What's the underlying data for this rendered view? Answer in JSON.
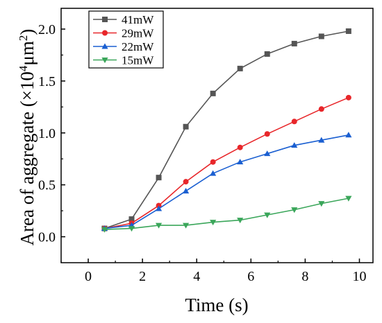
{
  "chart_data": {
    "type": "line",
    "title": "",
    "xlabel": "Time (s)",
    "ylabel_main": "Area of aggregate (×10",
    "ylabel_exp": "4",
    "ylabel_unit": "μm",
    "ylabel_unit_exp": "2",
    "ylabel_close": ")",
    "xlim": [
      -1,
      10.5
    ],
    "ylim": [
      -0.25,
      2.2
    ],
    "x_ticks": [
      0,
      2,
      4,
      6,
      8,
      10
    ],
    "x_tick_labels": [
      "0",
      "2",
      "4",
      "6",
      "8",
      "10"
    ],
    "y_ticks": [
      0.0,
      0.5,
      1.0,
      1.5,
      2.0
    ],
    "y_tick_labels": [
      "0.0",
      "0.5",
      "1.0",
      "1.5",
      "2.0"
    ],
    "legend_position": "top-left",
    "grid": false,
    "x": [
      0.6,
      1.6,
      2.6,
      3.6,
      4.6,
      5.6,
      6.6,
      7.6,
      8.6,
      9.6
    ],
    "series": [
      {
        "name": "41mW",
        "marker": "square",
        "color": "#555555",
        "values": [
          0.08,
          0.17,
          0.57,
          1.06,
          1.38,
          1.62,
          1.76,
          1.86,
          1.93,
          1.98
        ]
      },
      {
        "name": "29mW",
        "marker": "circle",
        "color": "#e8262a",
        "values": [
          0.08,
          0.13,
          0.3,
          0.53,
          0.72,
          0.86,
          0.99,
          1.11,
          1.23,
          1.34
        ]
      },
      {
        "name": "22mW",
        "marker": "triangle-up",
        "color": "#1a5fd1",
        "values": [
          0.08,
          0.11,
          0.27,
          0.44,
          0.61,
          0.72,
          0.8,
          0.88,
          0.93,
          0.98
        ]
      },
      {
        "name": "15mW",
        "marker": "triangle-down",
        "color": "#3aa65a",
        "values": [
          0.07,
          0.08,
          0.11,
          0.11,
          0.14,
          0.16,
          0.21,
          0.26,
          0.32,
          0.37
        ]
      }
    ]
  }
}
